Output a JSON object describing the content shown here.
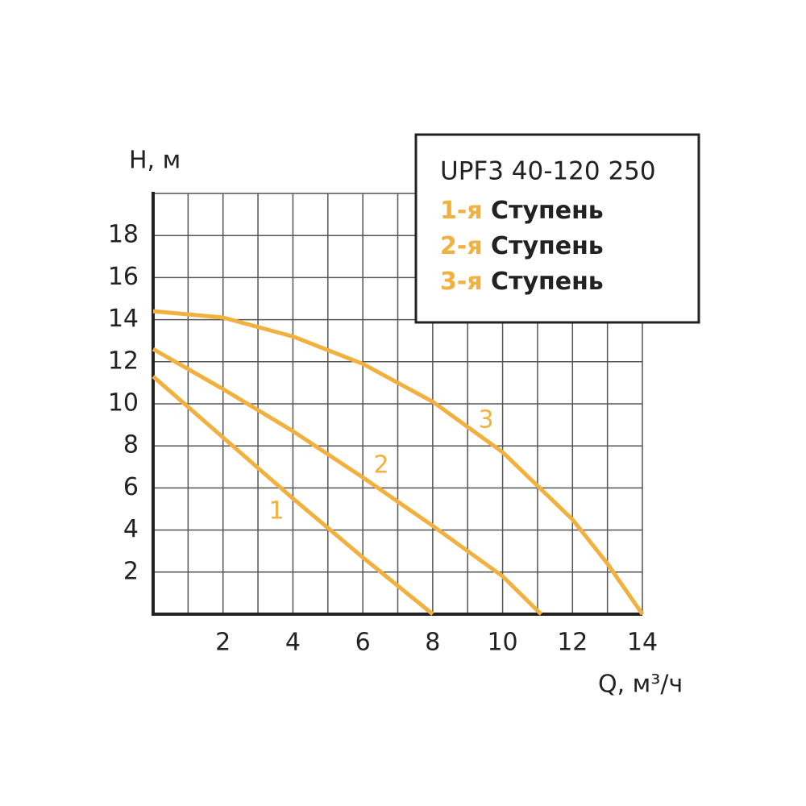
{
  "chart_data": {
    "type": "line",
    "title": "UPF3 40-120 250",
    "y_label": "H, м",
    "x_label": "Q, м³/ч",
    "xlim": [
      0,
      14
    ],
    "ylim": [
      0,
      20
    ],
    "xticks": [
      2,
      4,
      6,
      8,
      10,
      12,
      14
    ],
    "x_minor_ticks": [
      1,
      3,
      5,
      7,
      9,
      11,
      13
    ],
    "yticks": [
      2,
      4,
      6,
      8,
      10,
      12,
      14,
      16,
      18,
      20
    ],
    "y_tick_labels_shown": [
      2,
      4,
      6,
      8,
      10,
      12,
      14,
      16,
      18
    ],
    "grid": true,
    "series": [
      {
        "name": "1-я",
        "suffix": "Ступень",
        "label": "1",
        "color": "#f2b13f",
        "x": [
          0,
          2,
          4,
          6,
          8
        ],
        "values": [
          11.3,
          8.4,
          5.5,
          2.7,
          0
        ]
      },
      {
        "name": "2-я",
        "suffix": "Ступень",
        "label": "2",
        "color": "#f2b13f",
        "x": [
          0,
          2,
          4,
          6,
          8,
          10,
          11.1
        ],
        "values": [
          12.6,
          10.7,
          8.7,
          6.5,
          4.2,
          1.8,
          0
        ]
      },
      {
        "name": "3-я",
        "suffix": "Ступень",
        "label": "3",
        "color": "#f2b13f",
        "x": [
          0,
          2,
          4,
          6,
          8,
          10,
          12,
          13,
          14
        ],
        "values": [
          14.4,
          14.1,
          13.2,
          11.9,
          10.1,
          7.7,
          4.5,
          2.4,
          0
        ]
      }
    ]
  }
}
